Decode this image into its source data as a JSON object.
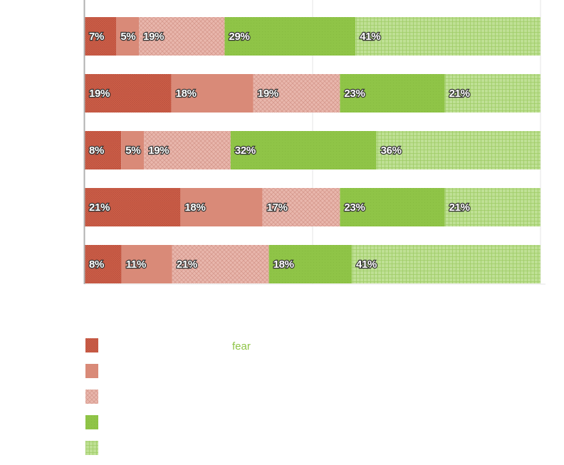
{
  "chart_data": {
    "type": "bar",
    "orientation": "horizontal",
    "stacked": true,
    "normalized": true,
    "categories": [
      "",
      "",
      "",
      "",
      ""
    ],
    "series": [
      {
        "name": "",
        "color": "#d0604a",
        "pattern": "fine-crosshatch",
        "values": [
          7,
          19,
          8,
          21,
          8
        ]
      },
      {
        "name": "",
        "color": "#d98a78",
        "pattern": "solid",
        "values": [
          5,
          18,
          5,
          18,
          11
        ]
      },
      {
        "name": "",
        "color": "#e3aba1",
        "pattern": "diagonal-crosshatch",
        "values": [
          19,
          19,
          19,
          17,
          21
        ]
      },
      {
        "name": "",
        "color": "#8fc447",
        "pattern": "solid",
        "values": [
          29,
          23,
          32,
          23,
          18
        ]
      },
      {
        "name": "",
        "color": "#b8dc8a",
        "pattern": "grid",
        "values": [
          41,
          21,
          36,
          21,
          41
        ]
      }
    ],
    "data_labels": [
      [
        "7%",
        "5%",
        "19%",
        "29%",
        "41%"
      ],
      [
        "19%",
        "18%",
        "19%",
        "23%",
        "21%"
      ],
      [
        "8%",
        "5%",
        "19%",
        "32%",
        "36%"
      ],
      [
        "21%",
        "18%",
        "17%",
        "23%",
        "21%"
      ],
      [
        "8%",
        "11%",
        "21%",
        "18%",
        "41%"
      ]
    ],
    "legend_position": "bottom-left",
    "legend_annotation": {
      "text": "fear",
      "color": "#8fc447"
    },
    "grid": true
  }
}
